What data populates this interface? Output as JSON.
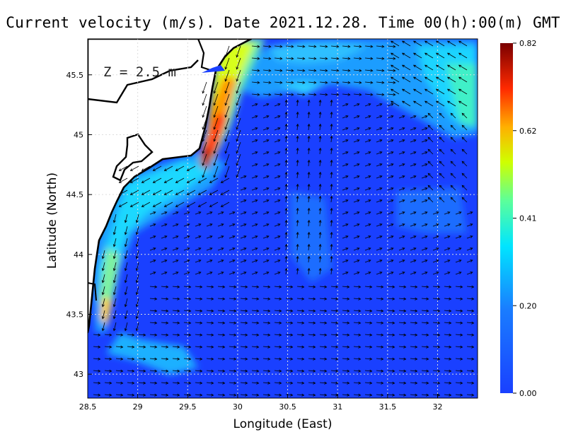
{
  "title": "Current velocity (m/s). Date 2021.12.28. Time 00(h):00(m) GMT",
  "depth_label": "Z = 2.5 m",
  "axes": {
    "xlabel": "Longitude (East)",
    "ylabel": "Latitude (North)",
    "xlim": [
      28.5,
      32.4
    ],
    "ylim": [
      42.8,
      45.8
    ],
    "xticks": [
      "28.5",
      "29",
      "29.5",
      "30",
      "30.5",
      "31",
      "31.5",
      "32"
    ],
    "yticks": [
      "43",
      "43.5",
      "44",
      "44.5",
      "45",
      "45.5"
    ],
    "grid": true
  },
  "colorbar": {
    "range": [
      0.0,
      0.82
    ],
    "tick_labels": [
      "0.82",
      "0.62",
      "0.41",
      "0.20",
      "0.00"
    ],
    "colors": [
      "#1a40ff",
      "#00e5ff",
      "#9cff00",
      "#ffd400",
      "#ff2a00",
      "#800000"
    ]
  },
  "land_color": "#ffffff",
  "coast_color": "#000000"
}
